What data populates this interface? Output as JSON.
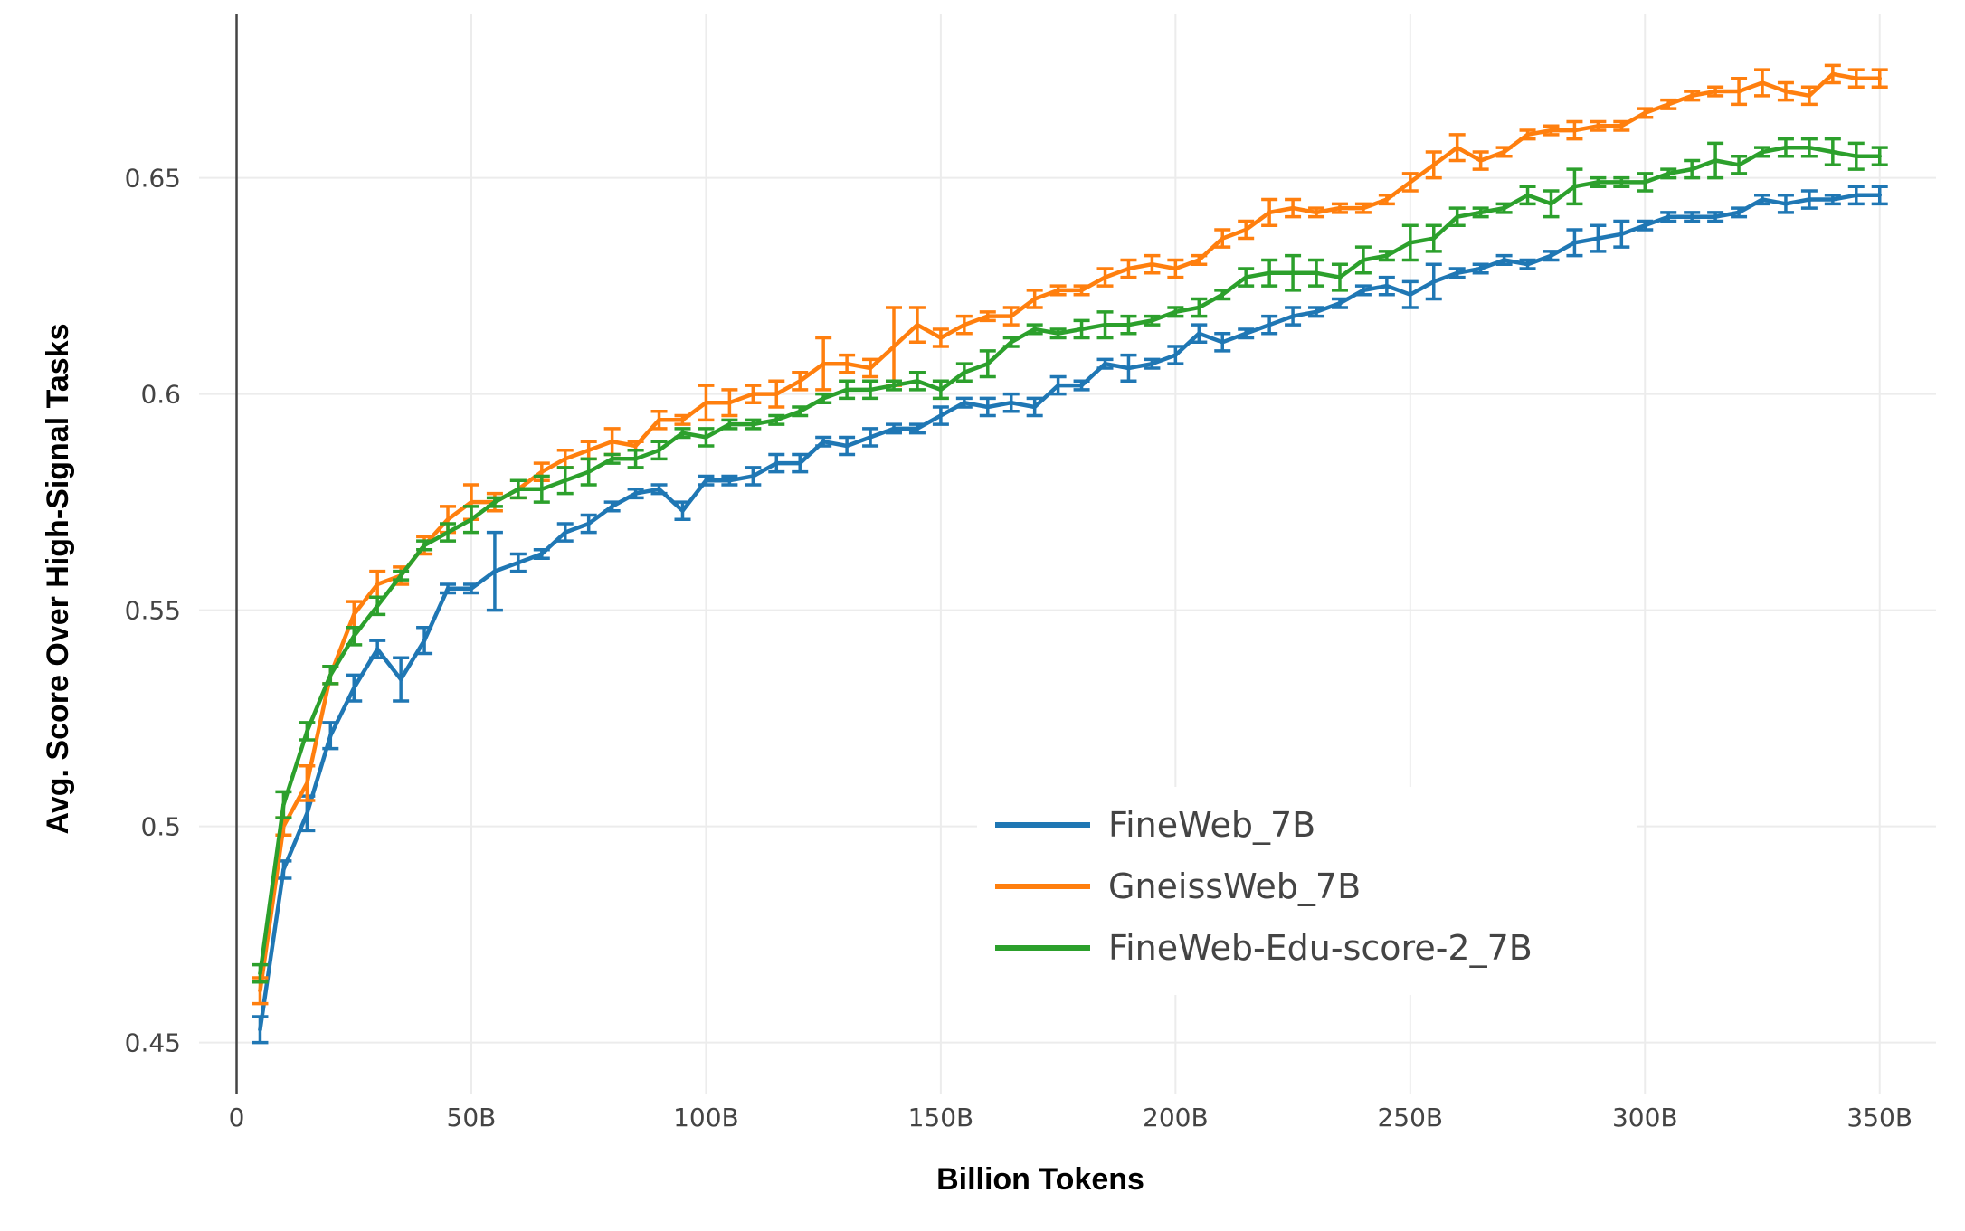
{
  "chart_data": {
    "type": "line",
    "title": "",
    "xlabel": "Billion Tokens",
    "ylabel": "Avg. Score Over High-Signal Tasks",
    "xlim": [
      -8,
      362
    ],
    "ylim": [
      0.438,
      0.688
    ],
    "grid": true,
    "legend_position": "bottom-right",
    "x_ticks": [
      {
        "value": 0,
        "label": "0"
      },
      {
        "value": 50,
        "label": "50B"
      },
      {
        "value": 100,
        "label": "100B"
      },
      {
        "value": 150,
        "label": "150B"
      },
      {
        "value": 200,
        "label": "200B"
      },
      {
        "value": 250,
        "label": "250B"
      },
      {
        "value": 300,
        "label": "300B"
      },
      {
        "value": 350,
        "label": "350B"
      }
    ],
    "y_ticks": [
      {
        "value": 0.45,
        "label": "0.45"
      },
      {
        "value": 0.5,
        "label": "0.5"
      },
      {
        "value": 0.55,
        "label": "0.55"
      },
      {
        "value": 0.6,
        "label": "0.6"
      },
      {
        "value": 0.65,
        "label": "0.65"
      }
    ],
    "x": [
      5,
      10,
      15,
      20,
      25,
      30,
      35,
      40,
      45,
      50,
      55,
      60,
      65,
      70,
      75,
      80,
      85,
      90,
      95,
      100,
      105,
      110,
      115,
      120,
      125,
      130,
      135,
      140,
      145,
      150,
      155,
      160,
      165,
      170,
      175,
      180,
      185,
      190,
      195,
      200,
      205,
      210,
      215,
      220,
      225,
      230,
      235,
      240,
      245,
      250,
      255,
      260,
      265,
      270,
      275,
      280,
      285,
      290,
      295,
      300,
      305,
      310,
      315,
      320,
      325,
      330,
      335,
      340,
      345,
      350
    ],
    "series": [
      {
        "name": "FineWeb_7B",
        "color": "#1f77b4",
        "values": [
          0.453,
          0.49,
          0.503,
          0.521,
          0.532,
          0.541,
          0.534,
          0.543,
          0.555,
          0.555,
          0.559,
          0.561,
          0.563,
          0.568,
          0.57,
          0.574,
          0.577,
          0.578,
          0.573,
          0.58,
          0.58,
          0.581,
          0.584,
          0.584,
          0.589,
          0.588,
          0.59,
          0.592,
          0.592,
          0.595,
          0.598,
          0.597,
          0.598,
          0.597,
          0.602,
          0.602,
          0.607,
          0.606,
          0.607,
          0.609,
          0.614,
          0.612,
          0.614,
          0.616,
          0.618,
          0.619,
          0.621,
          0.624,
          0.625,
          0.623,
          0.626,
          0.628,
          0.629,
          0.631,
          0.63,
          0.632,
          0.635,
          0.636,
          0.637,
          0.639,
          0.641,
          0.641,
          0.641,
          0.642,
          0.645,
          0.644,
          0.645,
          0.645,
          0.646,
          0.646
        ],
        "errors": [
          0.003,
          0.002,
          0.004,
          0.003,
          0.003,
          0.002,
          0.005,
          0.003,
          0.001,
          0.001,
          0.009,
          0.002,
          0.001,
          0.002,
          0.002,
          0.001,
          0.001,
          0.001,
          0.002,
          0.001,
          0.001,
          0.002,
          0.002,
          0.002,
          0.001,
          0.002,
          0.002,
          0.001,
          0.001,
          0.002,
          0.001,
          0.002,
          0.002,
          0.002,
          0.002,
          0.001,
          0.001,
          0.003,
          0.001,
          0.002,
          0.002,
          0.002,
          0.001,
          0.002,
          0.002,
          0.001,
          0.001,
          0.001,
          0.002,
          0.003,
          0.004,
          0.001,
          0.001,
          0.001,
          0.001,
          0.001,
          0.003,
          0.003,
          0.003,
          0.001,
          0.001,
          0.001,
          0.001,
          0.001,
          0.001,
          0.002,
          0.002,
          0.001,
          0.002,
          0.002
        ]
      },
      {
        "name": "GneissWeb_7B",
        "color": "#ff7f0e",
        "values": [
          0.462,
          0.5,
          0.51,
          0.535,
          0.549,
          0.556,
          0.558,
          0.565,
          0.571,
          0.575,
          0.575,
          0.578,
          0.582,
          0.585,
          0.587,
          0.589,
          0.588,
          0.594,
          0.594,
          0.598,
          0.598,
          0.6,
          0.6,
          0.603,
          0.607,
          0.607,
          0.606,
          0.611,
          0.616,
          0.613,
          0.616,
          0.618,
          0.618,
          0.622,
          0.624,
          0.624,
          0.627,
          0.629,
          0.63,
          0.629,
          0.631,
          0.636,
          0.638,
          0.642,
          0.643,
          0.642,
          0.643,
          0.643,
          0.645,
          0.649,
          0.653,
          0.657,
          0.654,
          0.656,
          0.66,
          0.661,
          0.661,
          0.662,
          0.662,
          0.665,
          0.667,
          0.669,
          0.67,
          0.67,
          0.672,
          0.67,
          0.669,
          0.674,
          0.673,
          0.673
        ],
        "errors": [
          0.003,
          0.002,
          0.004,
          0.002,
          0.003,
          0.003,
          0.002,
          0.002,
          0.003,
          0.004,
          0.002,
          0.002,
          0.002,
          0.002,
          0.002,
          0.003,
          0.001,
          0.002,
          0.001,
          0.004,
          0.003,
          0.002,
          0.003,
          0.002,
          0.006,
          0.002,
          0.002,
          0.009,
          0.004,
          0.002,
          0.002,
          0.001,
          0.002,
          0.002,
          0.001,
          0.001,
          0.002,
          0.002,
          0.002,
          0.002,
          0.001,
          0.002,
          0.002,
          0.003,
          0.002,
          0.001,
          0.001,
          0.001,
          0.001,
          0.002,
          0.003,
          0.003,
          0.002,
          0.001,
          0.001,
          0.001,
          0.002,
          0.001,
          0.001,
          0.001,
          0.001,
          0.001,
          0.001,
          0.003,
          0.003,
          0.002,
          0.002,
          0.002,
          0.002,
          0.002
        ]
      },
      {
        "name": "FineWeb-Edu-score-2_7B",
        "color": "#2ca02c",
        "values": [
          0.466,
          0.505,
          0.522,
          0.535,
          0.544,
          0.551,
          0.558,
          0.565,
          0.568,
          0.571,
          0.575,
          0.578,
          0.578,
          0.58,
          0.582,
          0.585,
          0.585,
          0.587,
          0.591,
          0.59,
          0.593,
          0.593,
          0.594,
          0.596,
          0.599,
          0.601,
          0.601,
          0.602,
          0.603,
          0.601,
          0.605,
          0.607,
          0.612,
          0.615,
          0.614,
          0.615,
          0.616,
          0.616,
          0.617,
          0.619,
          0.62,
          0.623,
          0.627,
          0.628,
          0.628,
          0.628,
          0.627,
          0.631,
          0.632,
          0.635,
          0.636,
          0.641,
          0.642,
          0.643,
          0.646,
          0.644,
          0.648,
          0.649,
          0.649,
          0.649,
          0.651,
          0.652,
          0.654,
          0.653,
          0.656,
          0.657,
          0.657,
          0.656,
          0.655,
          0.655
        ],
        "errors": [
          0.002,
          0.003,
          0.002,
          0.002,
          0.002,
          0.002,
          0.001,
          0.001,
          0.002,
          0.003,
          0.001,
          0.002,
          0.003,
          0.003,
          0.003,
          0.001,
          0.002,
          0.002,
          0.001,
          0.002,
          0.001,
          0.001,
          0.001,
          0.001,
          0.001,
          0.002,
          0.002,
          0.001,
          0.002,
          0.002,
          0.002,
          0.003,
          0.001,
          0.001,
          0.001,
          0.002,
          0.003,
          0.002,
          0.001,
          0.001,
          0.002,
          0.001,
          0.002,
          0.003,
          0.004,
          0.003,
          0.003,
          0.003,
          0.001,
          0.004,
          0.003,
          0.002,
          0.001,
          0.001,
          0.002,
          0.003,
          0.004,
          0.001,
          0.001,
          0.002,
          0.001,
          0.002,
          0.004,
          0.002,
          0.001,
          0.002,
          0.002,
          0.003,
          0.003,
          0.002
        ]
      }
    ]
  }
}
